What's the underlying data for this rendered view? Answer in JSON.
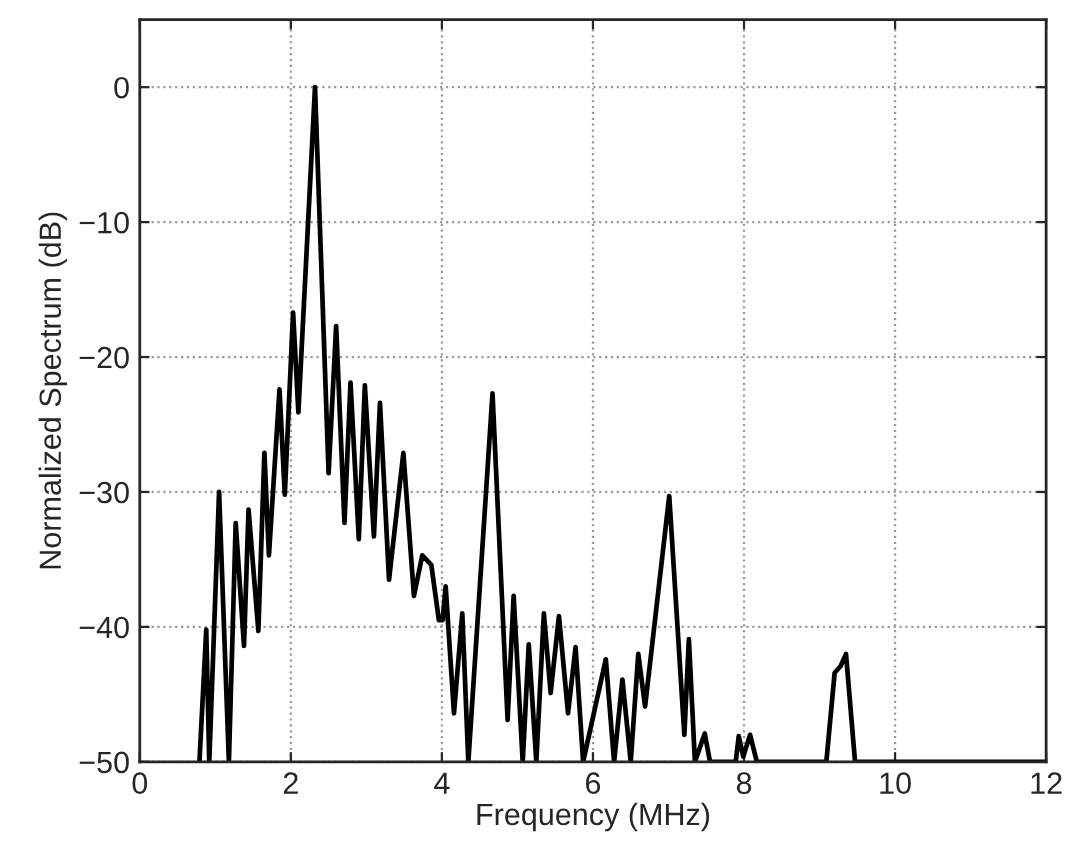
{
  "chart_data": {
    "type": "line",
    "xlabel": "Frequency (MHz)",
    "ylabel": "Normalized Spectrum (dB)",
    "x": [
      0.79,
      0.88,
      0.92,
      1.05,
      1.18,
      1.27,
      1.38,
      1.44,
      1.57,
      1.65,
      1.71,
      1.85,
      1.92,
      2.03,
      2.1,
      2.32,
      2.5,
      2.6,
      2.71,
      2.79,
      2.9,
      2.98,
      3.1,
      3.18,
      3.3,
      3.49,
      3.63,
      3.74,
      3.86,
      3.96,
      4.01,
      4.05,
      4.16,
      4.27,
      4.35,
      4.67,
      4.87,
      4.95,
      5.07,
      5.15,
      5.25,
      5.35,
      5.44,
      5.55,
      5.67,
      5.77,
      5.87,
      6.17,
      6.28,
      6.39,
      6.5,
      6.6,
      6.69,
      7.01,
      7.21,
      7.27,
      7.35,
      7.48,
      7.55,
      7.89,
      7.93,
      7.99,
      8.08,
      8.17,
      9.09,
      9.2,
      9.28,
      9.35,
      9.47,
      12
    ],
    "series": [
      {
        "color": "#000000",
        "values": [
          -50,
          -40.2,
          -50,
          -30,
          -50,
          -32.3,
          -41.4,
          -31.3,
          -40.3,
          -27.1,
          -34.7,
          -22.4,
          -30.2,
          -16.7,
          -24.1,
          0,
          -28.6,
          -17.7,
          -32.3,
          -21.9,
          -33.5,
          -22.1,
          -33.3,
          -23.4,
          -36.5,
          -27.1,
          -37.7,
          -34.7,
          -35.4,
          -39.5,
          -39.5,
          -37,
          -46.4,
          -39,
          -50,
          -22.7,
          -46.9,
          -37.7,
          -50,
          -41.3,
          -50,
          -39,
          -44.9,
          -39.2,
          -46.4,
          -41.5,
          -50,
          -42.4,
          -50,
          -43.9,
          -50,
          -42,
          -45.9,
          -30.3,
          -48,
          -40.9,
          -50,
          -47.9,
          -50,
          -50,
          -48.1,
          -49.6,
          -48,
          -50,
          -50,
          -43.4,
          -42.9,
          -42,
          -50,
          -50
        ]
      }
    ],
    "xlim": [
      0,
      12
    ],
    "xticks": [
      0,
      2,
      4,
      6,
      8,
      10,
      12
    ],
    "ylim": [
      -50,
      5
    ],
    "yticks": [
      {
        "value": -50,
        "label": "−50"
      },
      {
        "value": -40,
        "label": "−40"
      },
      {
        "value": -30,
        "label": "−30"
      },
      {
        "value": -20,
        "label": "−20"
      },
      {
        "value": -10,
        "label": "−10"
      },
      0
    ],
    "grid": true,
    "line_style": "solid",
    "marker": "none"
  }
}
